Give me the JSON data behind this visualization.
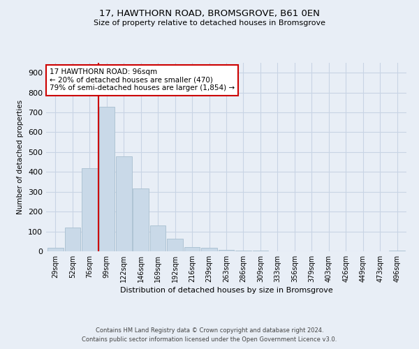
{
  "title": "17, HAWTHORN ROAD, BROMSGROVE, B61 0EN",
  "subtitle": "Size of property relative to detached houses in Bromsgrove",
  "xlabel": "Distribution of detached houses by size in Bromsgrove",
  "ylabel": "Number of detached properties",
  "footnote1": "Contains HM Land Registry data © Crown copyright and database right 2024.",
  "footnote2": "Contains public sector information licensed under the Open Government Licence v3.0.",
  "bar_labels": [
    "29sqm",
    "52sqm",
    "76sqm",
    "99sqm",
    "122sqm",
    "146sqm",
    "169sqm",
    "192sqm",
    "216sqm",
    "239sqm",
    "263sqm",
    "286sqm",
    "309sqm",
    "333sqm",
    "356sqm",
    "379sqm",
    "403sqm",
    "426sqm",
    "449sqm",
    "473sqm",
    "496sqm"
  ],
  "bar_values": [
    18,
    120,
    420,
    730,
    480,
    315,
    130,
    65,
    22,
    18,
    8,
    3,
    2,
    1,
    1,
    0,
    0,
    0,
    0,
    0,
    2
  ],
  "bar_color": "#c9d9e8",
  "bar_edge_color": "#a8bfd0",
  "grid_color": "#c8d4e4",
  "background_color": "#e8eef6",
  "vline_color": "#cc0000",
  "annotation_text": "17 HAWTHORN ROAD: 96sqm\n← 20% of detached houses are smaller (470)\n79% of semi-detached houses are larger (1,854) →",
  "annotation_box_color": "#ffffff",
  "annotation_box_edge_color": "#cc0000",
  "ylim": [
    0,
    950
  ],
  "yticks": [
    0,
    100,
    200,
    300,
    400,
    500,
    600,
    700,
    800,
    900
  ]
}
